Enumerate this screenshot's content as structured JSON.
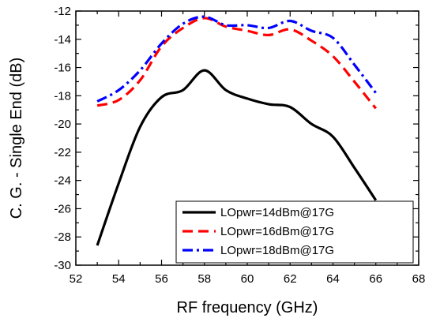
{
  "chart_data": {
    "type": "line",
    "xlabel": "RF frequency (GHz)",
    "ylabel": "C. G. - Single End (dB)",
    "xlim": [
      52,
      68
    ],
    "ylim": [
      -30,
      -12
    ],
    "xticks": [
      52,
      54,
      56,
      58,
      60,
      62,
      64,
      66,
      68
    ],
    "yticks": [
      -30,
      -28,
      -26,
      -24,
      -22,
      -20,
      -18,
      -16,
      -14,
      -12
    ],
    "x_minor_step": 1,
    "y_minor_step": 1,
    "grid": false,
    "legend_position": "bottom-right",
    "series": [
      {
        "name": "LOpwr=14dBm@17G",
        "color": "#000000",
        "dash": "solid",
        "x": [
          53,
          54,
          55,
          56,
          57,
          58,
          59,
          60,
          61,
          62,
          63,
          64,
          65,
          66
        ],
        "y": [
          -28.6,
          -24.2,
          -20.2,
          -18.1,
          -17.6,
          -16.2,
          -17.6,
          -18.2,
          -18.6,
          -18.8,
          -20.0,
          -20.9,
          -23.1,
          -25.4
        ]
      },
      {
        "name": "LOpwr=16dBm@17G",
        "color": "#ff0000",
        "dash": "dash",
        "x": [
          53,
          54,
          55,
          56,
          57,
          58,
          59,
          60,
          61,
          62,
          63,
          64,
          65,
          66
        ],
        "y": [
          -18.7,
          -18.3,
          -16.9,
          -14.5,
          -13.2,
          -12.5,
          -13.1,
          -13.4,
          -13.7,
          -13.3,
          -14.1,
          -15.2,
          -17.0,
          -18.9
        ]
      },
      {
        "name": "LOpwr=18dBm@17G",
        "color": "#0000ff",
        "dash": "dashdot",
        "x": [
          53,
          54,
          55,
          56,
          57,
          58,
          59,
          60,
          61,
          62,
          63,
          64,
          65,
          66
        ],
        "y": [
          -18.4,
          -17.6,
          -16.2,
          -14.3,
          -12.9,
          -12.4,
          -13.0,
          -13.0,
          -13.2,
          -12.7,
          -13.4,
          -13.9,
          -15.8,
          -17.8
        ]
      }
    ]
  }
}
